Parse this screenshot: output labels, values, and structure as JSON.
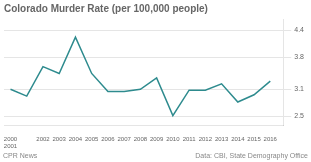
{
  "chart_data": {
    "type": "line",
    "title": "Colorado Murder Rate (per 100,000 people)",
    "annotations": [
      "CPR News",
      "Data: CBI, State Demography Office"
    ],
    "x": [
      2000,
      2001,
      2002,
      2003,
      2004,
      2005,
      2006,
      2007,
      2008,
      2009,
      2010,
      2011,
      2012,
      2013,
      2014,
      2015,
      2016
    ],
    "values": [
      3.1,
      2.95,
      3.6,
      3.45,
      4.25,
      3.45,
      3.05,
      3.05,
      3.1,
      3.35,
      2.52,
      3.08,
      3.08,
      3.22,
      2.82,
      2.98,
      3.28
    ],
    "color": "#2e8b8e",
    "xlim": [
      1999.6,
      2016.8
    ],
    "xticks": [
      {
        "value": 2000,
        "label": "2000\n2001"
      },
      2002,
      2003,
      2004,
      2005,
      2006,
      2007,
      2008,
      2009,
      2010,
      2011,
      2012,
      2013,
      2014,
      2015,
      2016
    ],
    "ylim": [
      2.3,
      4.65
    ],
    "yticks": [
      2.5,
      3.1,
      3.8,
      4.4
    ],
    "grid": true
  }
}
